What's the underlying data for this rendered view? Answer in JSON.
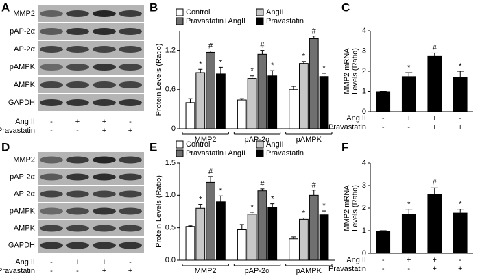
{
  "panel_letters": [
    "A",
    "B",
    "C",
    "D",
    "E",
    "F"
  ],
  "blots": [
    {
      "rows": [
        "MMP2",
        "pAP-2α",
        "AP-2α",
        "pAMPK",
        "AMPK",
        "GAPDH"
      ],
      "conditions": [
        {
          "name": "Ang II",
          "signs": [
            "-",
            "+",
            "+",
            "-"
          ]
        },
        {
          "name": "Pravastatin",
          "signs": [
            "-",
            "-",
            "+",
            "+"
          ]
        }
      ]
    },
    {
      "rows": [
        "MMP2",
        "pAP-2α",
        "AP-2α",
        "pAMPK",
        "AMPK",
        "GAPDH"
      ],
      "conditions": [
        {
          "name": "Ang II",
          "signs": [
            "-",
            "+",
            "+",
            "-"
          ]
        },
        {
          "name": "Pravastatin",
          "signs": [
            "-",
            "-",
            "+",
            "+"
          ]
        }
      ]
    }
  ],
  "chart_data": [
    {
      "type": "grouped_bar",
      "ylabel": "Protein Levels (Ratio)",
      "categories": [
        "MMP2",
        "pAP-2α",
        "pAMPK"
      ],
      "series": [
        {
          "name": "Control",
          "color": "#ffffff",
          "values": [
            0.4,
            0.44,
            0.6
          ],
          "errors": [
            0.06,
            0.02,
            0.05
          ],
          "annotations": [
            null,
            null,
            null
          ]
        },
        {
          "name": "AngII",
          "color": "#c8c8c8",
          "values": [
            0.86,
            0.77,
            1.0
          ],
          "errors": [
            0.05,
            0.04,
            0.03
          ],
          "annotations": [
            "*",
            "*",
            "*"
          ]
        },
        {
          "name": "Pravastatin+AngII",
          "color": "#707070",
          "values": [
            1.17,
            1.14,
            1.38
          ],
          "errors": [
            0.02,
            0.06,
            0.04
          ],
          "annotations": [
            "#",
            "#",
            "#"
          ]
        },
        {
          "name": "Pravastatin",
          "color": "#000000",
          "values": [
            0.84,
            0.81,
            0.8
          ],
          "errors": [
            0.1,
            0.08,
            0.05
          ],
          "annotations": [
            "*",
            "*",
            "*"
          ]
        }
      ],
      "ylim": [
        0,
        1.5
      ],
      "yticks": [
        0,
        0.6,
        1.2
      ]
    },
    {
      "type": "bar",
      "ylabel": [
        "MMP2 mRNA",
        "Levels (Ratio)"
      ],
      "color": "#000000",
      "values": [
        1.0,
        1.75,
        2.75,
        1.7
      ],
      "errors": [
        0,
        0.18,
        0.15,
        0.3
      ],
      "annotations": [
        null,
        "*",
        "#",
        "*"
      ],
      "conditions": [
        {
          "name": "Ang II",
          "signs": [
            "-",
            "+",
            "+",
            "-"
          ]
        },
        {
          "name": "Pravastatin",
          "signs": [
            "-",
            "-",
            "+",
            "+"
          ]
        }
      ],
      "ylim": [
        0,
        4
      ],
      "yticks": [
        0,
        1,
        2,
        3,
        4
      ]
    },
    {
      "type": "grouped_bar",
      "ylabel": "Protein Levels (Ratio)",
      "categories": [
        "MMP2",
        "pAP-2α",
        "pAMPK"
      ],
      "series": [
        {
          "name": "Control",
          "color": "#ffffff",
          "values": [
            0.52,
            0.47,
            0.33
          ],
          "errors": [
            0.01,
            0.08,
            0.03
          ],
          "annotations": [
            null,
            null,
            null
          ]
        },
        {
          "name": "AngII",
          "color": "#c8c8c8",
          "values": [
            0.8,
            0.71,
            0.63
          ],
          "errors": [
            0.06,
            0.03,
            0.02
          ],
          "annotations": [
            "*",
            "*",
            "*"
          ]
        },
        {
          "name": "Pravastatin+AngII",
          "color": "#707070",
          "values": [
            1.2,
            1.07,
            1.0
          ],
          "errors": [
            0.09,
            0.03,
            0.08
          ],
          "annotations": [
            "#",
            "#",
            "#"
          ]
        },
        {
          "name": "Pravastatin",
          "color": "#000000",
          "values": [
            0.9,
            0.81,
            0.7
          ],
          "errors": [
            0.09,
            0.06,
            0.06
          ],
          "annotations": [
            "*",
            "*",
            "*"
          ]
        }
      ],
      "ylim": [
        0,
        1.5
      ],
      "yticks": [
        {
          "value": 0,
          "label": "0.0"
        },
        {
          "value": 0.5,
          "label": "0.5"
        },
        {
          "value": 1.0,
          "label": "1.0"
        },
        {
          "value": 1.5,
          "label": "1.5"
        }
      ]
    },
    {
      "type": "bar",
      "ylabel": [
        "MMP2 mRNA",
        "Levels (Ratio)"
      ],
      "color": "#000000",
      "values": [
        1.0,
        1.75,
        2.62,
        1.8
      ],
      "errors": [
        0,
        0.2,
        0.28,
        0.15
      ],
      "annotations": [
        null,
        "*",
        "#",
        "*"
      ],
      "conditions": [
        {
          "name": "Ang II",
          "signs": [
            "-",
            "+",
            "+",
            "-"
          ]
        },
        {
          "name": "Pravastatin",
          "signs": [
            "-",
            "-",
            "+",
            "+"
          ]
        }
      ],
      "ylim": [
        0,
        4
      ],
      "yticks": [
        0,
        1,
        2,
        3,
        4
      ]
    }
  ]
}
